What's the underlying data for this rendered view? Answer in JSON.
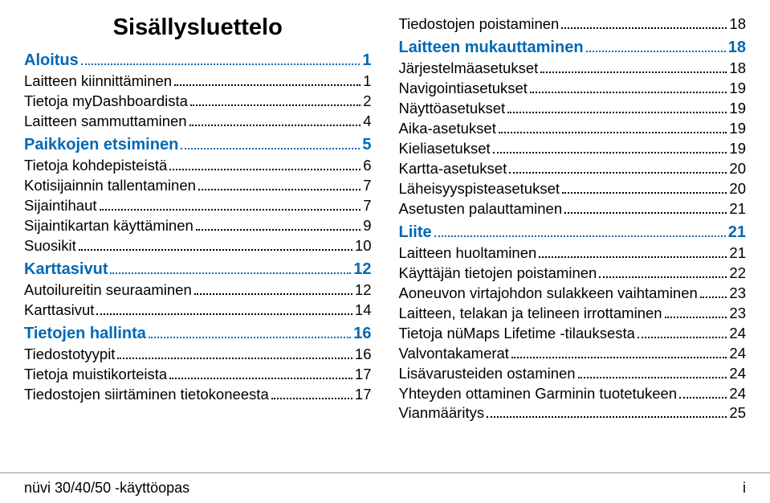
{
  "title": "Sisällysluettelo",
  "footer": {
    "left": "nüvi 30/40/50 -käyttöopas",
    "right": "i"
  },
  "colors": {
    "section": "#0068b3",
    "text": "#000000",
    "rule": "#999999",
    "bg": "#ffffff"
  },
  "typography": {
    "title_fontsize_pt": 22,
    "section_fontsize_pt": 15,
    "sub_fontsize_pt": 14,
    "footer_fontsize_pt": 13,
    "font_family": "Arial Narrow / Helvetica Condensed"
  },
  "columns": {
    "left": [
      {
        "type": "section",
        "label": "Aloitus",
        "page": "1"
      },
      {
        "type": "sub",
        "label": "Laitteen kiinnittäminen",
        "page": "1"
      },
      {
        "type": "sub",
        "label": "Tietoja myDashboardista",
        "page": "2"
      },
      {
        "type": "sub",
        "label": "Laitteen sammuttaminen",
        "page": "4"
      },
      {
        "type": "section",
        "label": "Paikkojen etsiminen",
        "page": "5"
      },
      {
        "type": "sub",
        "label": "Tietoja kohdepisteistä",
        "page": "6"
      },
      {
        "type": "sub",
        "label": "Kotisijainnin tallentaminen",
        "page": "7"
      },
      {
        "type": "sub",
        "label": "Sijaintihaut",
        "page": "7"
      },
      {
        "type": "sub",
        "label": "Sijaintikartan käyttäminen",
        "page": "9"
      },
      {
        "type": "sub",
        "label": "Suosikit",
        "page": "10"
      },
      {
        "type": "section",
        "label": "Karttasivut",
        "page": "12"
      },
      {
        "type": "sub",
        "label": "Autoilureitin seuraaminen",
        "page": "12"
      },
      {
        "type": "sub",
        "label": "Karttasivut",
        "page": "14"
      },
      {
        "type": "section",
        "label": "Tietojen hallinta",
        "page": "16"
      },
      {
        "type": "sub",
        "label": "Tiedostotyypit",
        "page": "16"
      },
      {
        "type": "sub",
        "label": "Tietoja muistikorteista",
        "page": "17"
      },
      {
        "type": "sub",
        "label": "Tiedostojen siirtäminen tietokoneesta",
        "page": "17"
      }
    ],
    "right": [
      {
        "type": "sub",
        "label": "Tiedostojen poistaminen",
        "page": "18"
      },
      {
        "type": "section",
        "label": "Laitteen mukauttaminen",
        "page": "18"
      },
      {
        "type": "sub",
        "label": "Järjestelmäasetukset",
        "page": "18"
      },
      {
        "type": "sub",
        "label": "Navigointiasetukset",
        "page": "19"
      },
      {
        "type": "sub",
        "label": "Näyttöasetukset",
        "page": "19"
      },
      {
        "type": "sub",
        "label": "Aika-asetukset",
        "page": "19"
      },
      {
        "type": "sub",
        "label": "Kieliasetukset",
        "page": "19"
      },
      {
        "type": "sub",
        "label": "Kartta-asetukset",
        "page": "20"
      },
      {
        "type": "sub",
        "label": "Läheisyyspisteasetukset",
        "page": "20"
      },
      {
        "type": "sub",
        "label": "Asetusten palauttaminen",
        "page": "21"
      },
      {
        "type": "section",
        "label": "Liite",
        "page": "21"
      },
      {
        "type": "sub",
        "label": "Laitteen huoltaminen",
        "page": "21"
      },
      {
        "type": "sub",
        "label": "Käyttäjän tietojen poistaminen",
        "page": "22"
      },
      {
        "type": "sub",
        "label": "Aoneuvon virtajohdon sulakkeen vaihtaminen",
        "page": "23"
      },
      {
        "type": "sub",
        "label": "Laitteen, telakan ja telineen irrottaminen",
        "page": "23"
      },
      {
        "type": "sub",
        "label": "Tietoja nüMaps Lifetime -tilauksesta",
        "page": "24"
      },
      {
        "type": "sub",
        "label": "Valvontakamerat",
        "page": "24"
      },
      {
        "type": "sub",
        "label": "Lisävarusteiden ostaminen",
        "page": "24"
      },
      {
        "type": "sub",
        "label": "Yhteyden ottaminen Garminin tuotetukeen",
        "page": "24"
      },
      {
        "type": "sub",
        "label": "Vianmääritys",
        "page": "25"
      }
    ]
  }
}
